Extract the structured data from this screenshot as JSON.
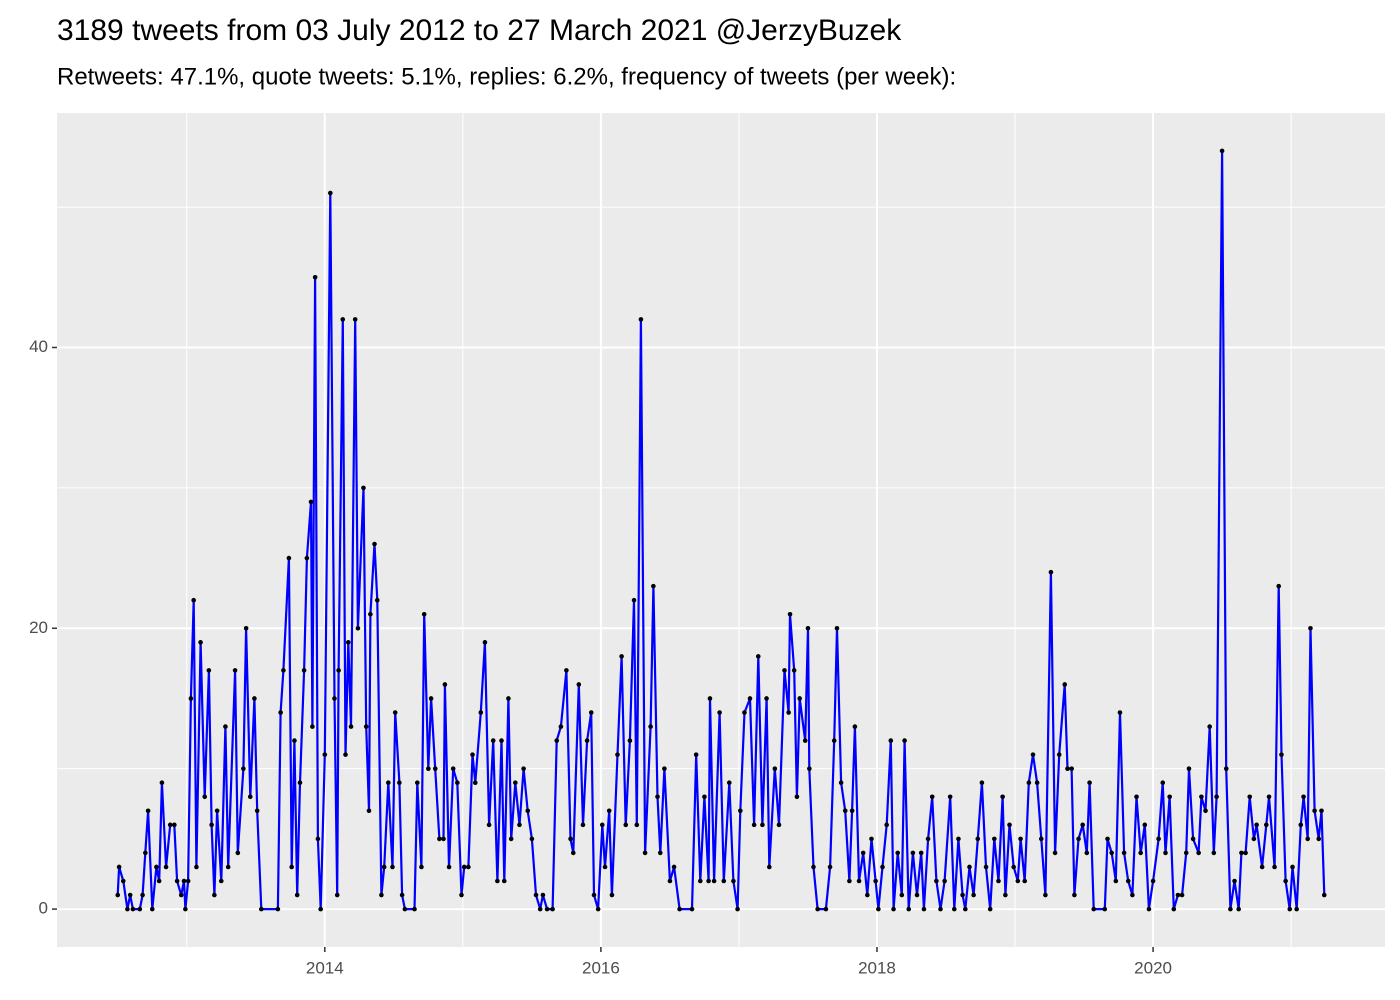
{
  "chart_data": {
    "type": "line",
    "title": "3189 tweets from 03 July 2012 to 27 March 2021 @JerzyBuzek",
    "subtitle": "Retweets: 47.1%, quote tweets: 5.1%, replies: 6.2%, frequency of tweets (per week):",
    "x": [
      2012.5,
      2012.51,
      2012.54,
      2012.57,
      2012.59,
      2012.61,
      2012.66,
      2012.68,
      2012.7,
      2012.72,
      2012.75,
      2012.78,
      2012.8,
      2012.82,
      2012.85,
      2012.88,
      2012.91,
      2012.93,
      2012.96,
      2012.98,
      2012.99,
      2013.01,
      2013.03,
      2013.05,
      2013.07,
      2013.1,
      2013.13,
      2013.16,
      2013.18,
      2013.2,
      2013.22,
      2013.25,
      2013.28,
      2013.3,
      2013.35,
      2013.37,
      2013.41,
      2013.43,
      2013.46,
      2013.49,
      2013.51,
      2013.54,
      2013.66,
      2013.68,
      2013.7,
      2013.74,
      2013.76,
      2013.78,
      2013.8,
      2013.82,
      2013.85,
      2013.87,
      2013.9,
      2013.91,
      2013.93,
      2013.95,
      2013.97,
      2014.0,
      2014.04,
      2014.07,
      2014.09,
      2014.1,
      2014.13,
      2014.15,
      2014.17,
      2014.19,
      2014.22,
      2014.24,
      2014.28,
      2014.3,
      2014.32,
      2014.33,
      2014.36,
      2014.38,
      2014.41,
      2014.43,
      2014.46,
      2014.49,
      2014.51,
      2014.54,
      2014.56,
      2014.58,
      2014.65,
      2014.67,
      2014.7,
      2014.72,
      2014.75,
      2014.77,
      2014.8,
      2014.83,
      2014.86,
      2014.87,
      2014.9,
      2014.93,
      2014.96,
      2014.99,
      2015.01,
      2015.04,
      2015.07,
      2015.09,
      2015.13,
      2015.16,
      2015.19,
      2015.22,
      2015.25,
      2015.28,
      2015.3,
      2015.33,
      2015.35,
      2015.38,
      2015.41,
      2015.44,
      2015.47,
      2015.5,
      2015.53,
      2015.56,
      2015.58,
      2015.61,
      2015.65,
      2015.68,
      2015.71,
      2015.75,
      2015.78,
      2015.8,
      2015.84,
      2015.87,
      2015.9,
      2015.93,
      2015.95,
      2015.98,
      2016.01,
      2016.03,
      2016.06,
      2016.08,
      2016.12,
      2016.15,
      2016.18,
      2016.21,
      2016.24,
      2016.26,
      2016.29,
      2016.32,
      2016.36,
      2016.38,
      2016.41,
      2016.43,
      2016.46,
      2016.5,
      2016.53,
      2016.57,
      2016.66,
      2016.69,
      2016.72,
      2016.75,
      2016.78,
      2016.79,
      2016.82,
      2016.86,
      2016.89,
      2016.93,
      2016.96,
      2016.99,
      2017.01,
      2017.04,
      2017.08,
      2017.11,
      2017.14,
      2017.17,
      2017.2,
      2017.22,
      2017.26,
      2017.29,
      2017.33,
      2017.36,
      2017.37,
      2017.4,
      2017.42,
      2017.44,
      2017.48,
      2017.5,
      2017.51,
      2017.54,
      2017.57,
      2017.63,
      2017.66,
      2017.69,
      2017.71,
      2017.74,
      2017.77,
      2017.8,
      2017.82,
      2017.84,
      2017.87,
      2017.9,
      2017.93,
      2017.96,
      2017.99,
      2018.01,
      2018.04,
      2018.07,
      2018.1,
      2018.12,
      2018.15,
      2018.18,
      2018.2,
      2018.23,
      2018.26,
      2018.29,
      2018.32,
      2018.34,
      2018.37,
      2018.4,
      2018.43,
      2018.46,
      2018.49,
      2018.53,
      2018.56,
      2018.59,
      2018.62,
      2018.64,
      2018.67,
      2018.7,
      2018.73,
      2018.76,
      2018.79,
      2018.82,
      2018.85,
      2018.88,
      2018.91,
      2018.93,
      2018.96,
      2018.99,
      2019.02,
      2019.04,
      2019.07,
      2019.1,
      2019.13,
      2019.16,
      2019.19,
      2019.22,
      2019.26,
      2019.29,
      2019.32,
      2019.36,
      2019.38,
      2019.41,
      2019.43,
      2019.46,
      2019.49,
      2019.52,
      2019.54,
      2019.57,
      2019.65,
      2019.67,
      2019.7,
      2019.73,
      2019.76,
      2019.79,
      2019.82,
      2019.85,
      2019.88,
      2019.91,
      2019.94,
      2019.97,
      2020.0,
      2020.04,
      2020.07,
      2020.09,
      2020.12,
      2020.15,
      2020.18,
      2020.21,
      2020.24,
      2020.26,
      2020.29,
      2020.33,
      2020.35,
      2020.38,
      2020.41,
      2020.44,
      2020.46,
      2020.5,
      2020.53,
      2020.56,
      2020.59,
      2020.62,
      2020.64,
      2020.67,
      2020.7,
      2020.73,
      2020.75,
      2020.79,
      2020.82,
      2020.84,
      2020.88,
      2020.91,
      2020.93,
      2020.96,
      2020.99,
      2021.01,
      2021.04,
      2021.07,
      2021.09,
      2021.12,
      2021.14,
      2021.17,
      2021.2,
      2021.22,
      2021.24
    ],
    "values": [
      1,
      3,
      2,
      0,
      1,
      0,
      0,
      1,
      4,
      7,
      0,
      3,
      2,
      9,
      3,
      6,
      6,
      2,
      1,
      2,
      0,
      2,
      15,
      22,
      3,
      19,
      8,
      17,
      6,
      1,
      7,
      2,
      13,
      3,
      17,
      4,
      10,
      20,
      8,
      15,
      7,
      0,
      0,
      14,
      17,
      25,
      3,
      12,
      1,
      9,
      17,
      25,
      29,
      13,
      45,
      5,
      0,
      11,
      51,
      15,
      1,
      17,
      42,
      11,
      19,
      13,
      42,
      20,
      30,
      13,
      7,
      21,
      26,
      22,
      1,
      3,
      9,
      3,
      14,
      9,
      1,
      0,
      0,
      9,
      3,
      21,
      10,
      15,
      10,
      5,
      5,
      16,
      3,
      10,
      9,
      1,
      3,
      3,
      11,
      9,
      14,
      19,
      6,
      12,
      2,
      12,
      2,
      15,
      5,
      9,
      6,
      10,
      7,
      5,
      1,
      0,
      1,
      0,
      0,
      12,
      13,
      17,
      5,
      4,
      16,
      6,
      12,
      14,
      1,
      0,
      6,
      3,
      7,
      1,
      11,
      18,
      6,
      12,
      22,
      6,
      42,
      4,
      13,
      23,
      8,
      4,
      10,
      2,
      3,
      0,
      0,
      11,
      2,
      8,
      2,
      15,
      2,
      14,
      2,
      9,
      2,
      0,
      7,
      14,
      15,
      6,
      18,
      6,
      15,
      3,
      10,
      6,
      17,
      14,
      21,
      17,
      8,
      15,
      12,
      20,
      10,
      3,
      0,
      0,
      3,
      12,
      20,
      9,
      7,
      2,
      7,
      13,
      2,
      4,
      1,
      5,
      2,
      0,
      3,
      6,
      12,
      0,
      4,
      1,
      12,
      0,
      4,
      1,
      4,
      0,
      5,
      8,
      2,
      0,
      2,
      8,
      0,
      5,
      1,
      0,
      3,
      1,
      5,
      9,
      3,
      0,
      5,
      2,
      8,
      1,
      6,
      3,
      2,
      5,
      2,
      9,
      11,
      9,
      5,
      1,
      24,
      4,
      11,
      16,
      10,
      10,
      1,
      5,
      6,
      4,
      9,
      0,
      0,
      5,
      4,
      2,
      14,
      4,
      2,
      1,
      8,
      4,
      6,
      0,
      2,
      5,
      9,
      4,
      8,
      0,
      1,
      1,
      4,
      10,
      5,
      4,
      8,
      7,
      13,
      4,
      8,
      54,
      10,
      0,
      2,
      0,
      4,
      4,
      8,
      5,
      6,
      3,
      6,
      8,
      3,
      23,
      11,
      2,
      0,
      3,
      0,
      6,
      8,
      5,
      20,
      7,
      5,
      7,
      1
    ],
    "color": "#0000ff",
    "point_color": "#000000",
    "xlim": [
      2012.06,
      2021.68
    ],
    "xticks": [
      2014,
      2016,
      2018,
      2020
    ],
    "xminorticks": [
      2013,
      2015,
      2017,
      2019,
      2021
    ],
    "ylim": [
      -2.7,
      56.7
    ],
    "yticks": [
      0,
      20,
      40
    ],
    "yminorticks": [
      10,
      30,
      50
    ],
    "grid": true
  }
}
